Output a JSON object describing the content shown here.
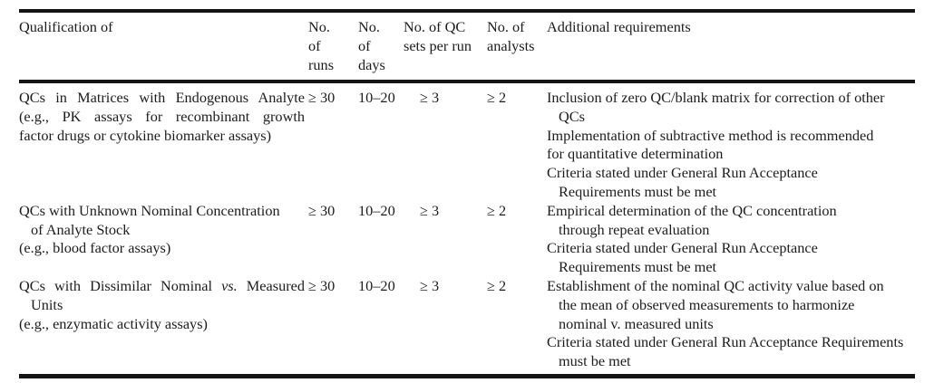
{
  "page": {
    "background": "#ffffff",
    "text_color": "#1c1c1c",
    "rule_color": "#141414"
  },
  "table": {
    "headers": [
      {
        "id": "qualification",
        "lines": [
          "Qualification of"
        ]
      },
      {
        "id": "runs",
        "lines": [
          "No.",
          "of",
          "runs"
        ]
      },
      {
        "id": "days",
        "lines": [
          "No.",
          "of",
          "days"
        ]
      },
      {
        "id": "qc-sets-per-run",
        "lines": [
          "No. of QC",
          "sets per run"
        ]
      },
      {
        "id": "analysts",
        "lines": [
          "No. of",
          "analysts"
        ]
      },
      {
        "id": "additional-requirements",
        "lines": [
          "Additional requirements"
        ]
      }
    ],
    "rows": [
      {
        "qualification": [
          {
            "t": "QCs in Matrices with Endogenous Analyte",
            "j": true
          },
          {
            "t": "(e.g., PK assays for recombinant growth",
            "j": true
          },
          {
            "t": "factor drugs or cytokine biomarker assays)"
          }
        ],
        "runs": "≥ 30",
        "days": "10–20",
        "qc_sets": "≥ 3",
        "analysts": "≥ 2",
        "additional": [
          {
            "t": "Inclusion of zero QC/blank matrix for correction of other"
          },
          {
            "t": "QCs",
            "ind": true
          },
          {
            "t": "Implementation of subtractive method is recommended"
          },
          {
            "t": "for quantitative determination"
          },
          {
            "t": "Criteria stated under General Run Acceptance"
          },
          {
            "t": "Requirements must be met",
            "ind": true
          }
        ]
      },
      {
        "qualification": [
          {
            "t": "QCs with Unknown Nominal Concentration"
          },
          {
            "t": "of Analyte Stock",
            "ind": true
          },
          {
            "t": "(e.g., blood factor assays)"
          }
        ],
        "runs": "≥ 30",
        "days": "10–20",
        "qc_sets": "≥ 3",
        "analysts": "≥ 2",
        "additional": [
          {
            "t": "Empirical determination of the QC concentration"
          },
          {
            "t": "through repeat evaluation",
            "ind": true
          },
          {
            "t": "Criteria stated under General Run Acceptance"
          },
          {
            "t": "Requirements must be met",
            "ind": true
          }
        ]
      },
      {
        "qualification": [
          {
            "parts": [
              {
                "t": "QCs with Dissimilar Nominal "
              },
              {
                "t": "vs.",
                "italic": true
              },
              {
                "t": " Measured"
              }
            ],
            "j": true
          },
          {
            "t": "Units",
            "ind": true
          },
          {
            "t": "(e.g., enzymatic activity assays)"
          }
        ],
        "runs": "≥ 30",
        "days": "10–20",
        "qc_sets": "≥ 3",
        "analysts": "≥ 2",
        "additional": [
          {
            "t": "Establishment of the nominal QC activity value based on"
          },
          {
            "t": "the mean of observed measurements to harmonize",
            "ind": true
          },
          {
            "t": "nominal v. measured units",
            "ind": true
          },
          {
            "t": "Criteria stated under General Run Acceptance Requirements"
          },
          {
            "t": "must be met",
            "ind": true
          }
        ]
      }
    ]
  }
}
